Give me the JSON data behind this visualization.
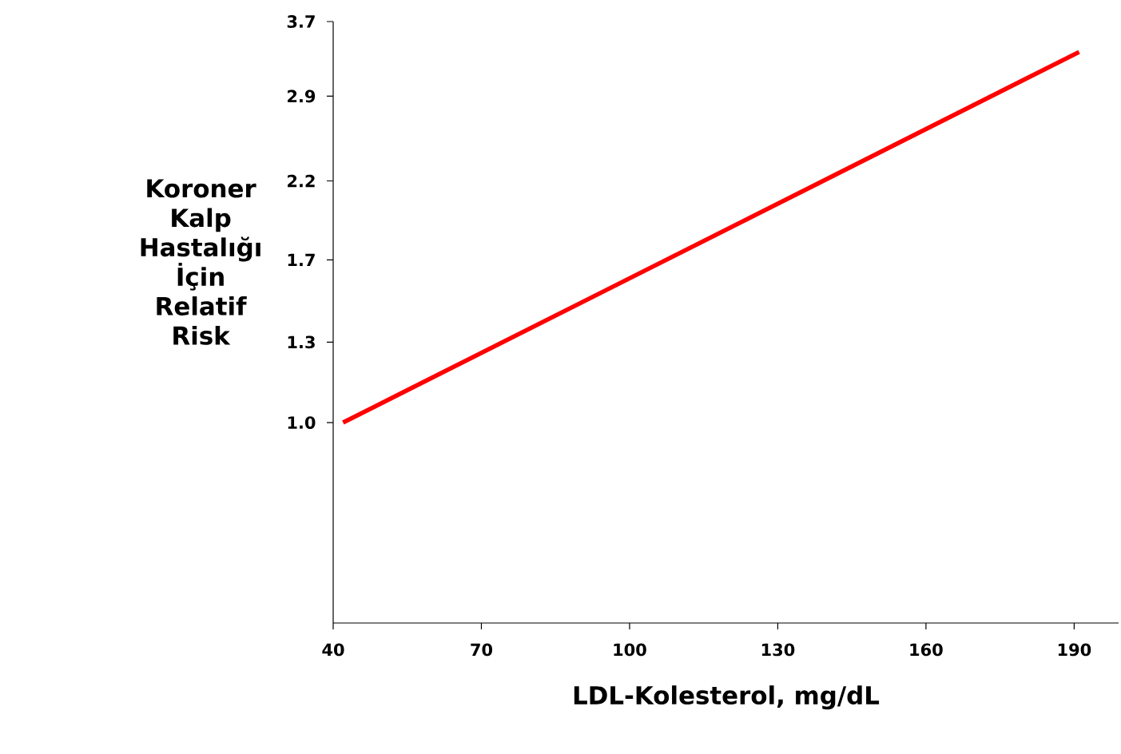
{
  "chart_data": {
    "type": "line",
    "xlabel": "LDL-Kolesterol, mg/dL",
    "ylabel": "Koroner Kalp Hastalığı İçin Relatif Risk",
    "x": [
      42,
      191
    ],
    "series": [
      {
        "color": "#ff0000",
        "values": [
          1.0,
          3.35
        ]
      }
    ],
    "xlim": [
      40,
      199
    ],
    "ylim": [
      0.52,
      3.7
    ],
    "log": "y",
    "xticks": [
      40,
      70,
      100,
      130,
      160,
      190
    ],
    "yticks": [
      {
        "value": 1,
        "label": "1.0"
      },
      1.3,
      1.7,
      2.2,
      2.9,
      3.7
    ]
  }
}
